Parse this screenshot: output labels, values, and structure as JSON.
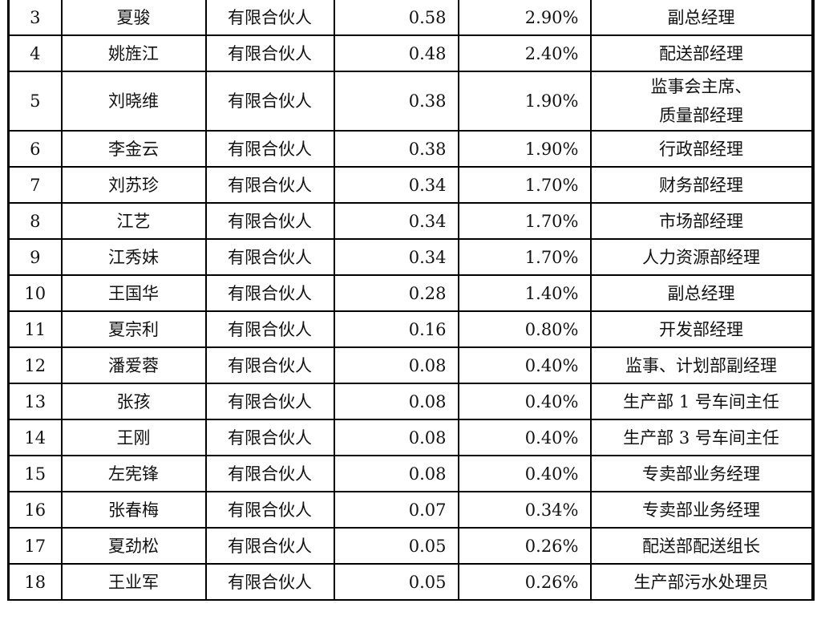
{
  "rows": [
    {
      "no": "3",
      "name": "夏骏",
      "type": "有限合伙人",
      "amount": "0.58",
      "ratio": "2.90%",
      "position": "副总经理"
    },
    {
      "no": "4",
      "name": "姚旌江",
      "type": "有限合伙人",
      "amount": "0.48",
      "ratio": "2.40%",
      "position": "配送部经理"
    },
    {
      "no": "5",
      "name": "刘晓维",
      "type": "有限合伙人",
      "amount": "0.38",
      "ratio": "1.90%",
      "position": "监事会主席、",
      "position2": "质量部经理"
    },
    {
      "no": "6",
      "name": "李金云",
      "type": "有限合伙人",
      "amount": "0.38",
      "ratio": "1.90%",
      "position": "行政部经理"
    },
    {
      "no": "7",
      "name": "刘苏珍",
      "type": "有限合伙人",
      "amount": "0.34",
      "ratio": "1.70%",
      "position": "财务部经理"
    },
    {
      "no": "8",
      "name": "江艺",
      "type": "有限合伙人",
      "amount": "0.34",
      "ratio": "1.70%",
      "position": "市场部经理"
    },
    {
      "no": "9",
      "name": "江秀妹",
      "type": "有限合伙人",
      "amount": "0.34",
      "ratio": "1.70%",
      "position": "人力资源部经理"
    },
    {
      "no": "10",
      "name": "王国华",
      "type": "有限合伙人",
      "amount": "0.28",
      "ratio": "1.40%",
      "position": "副总经理"
    },
    {
      "no": "11",
      "name": "夏宗利",
      "type": "有限合伙人",
      "amount": "0.16",
      "ratio": "0.80%",
      "position": "开发部经理"
    },
    {
      "no": "12",
      "name": "潘爱蓉",
      "type": "有限合伙人",
      "amount": "0.08",
      "ratio": "0.40%",
      "position": "监事、计划部副经理"
    },
    {
      "no": "13",
      "name": "张孩",
      "type": "有限合伙人",
      "amount": "0.08",
      "ratio": "0.40%",
      "position": "生产部 1 号车间主任"
    },
    {
      "no": "14",
      "name": "王刚",
      "type": "有限合伙人",
      "amount": "0.08",
      "ratio": "0.40%",
      "position": "生产部 3 号车间主任"
    },
    {
      "no": "15",
      "name": "左宪锋",
      "type": "有限合伙人",
      "amount": "0.08",
      "ratio": "0.40%",
      "position": "专卖部业务经理"
    },
    {
      "no": "16",
      "name": "张春梅",
      "type": "有限合伙人",
      "amount": "0.07",
      "ratio": "0.34%",
      "position": "专卖部业务经理"
    },
    {
      "no": "17",
      "name": "夏劲松",
      "type": "有限合伙人",
      "amount": "0.05",
      "ratio": "0.26%",
      "position": "配送部配送组长"
    },
    {
      "no": "18",
      "name": "王业军",
      "type": "有限合伙人",
      "amount": "0.05",
      "ratio": "0.26%",
      "position": "生产部污水处理员"
    }
  ]
}
